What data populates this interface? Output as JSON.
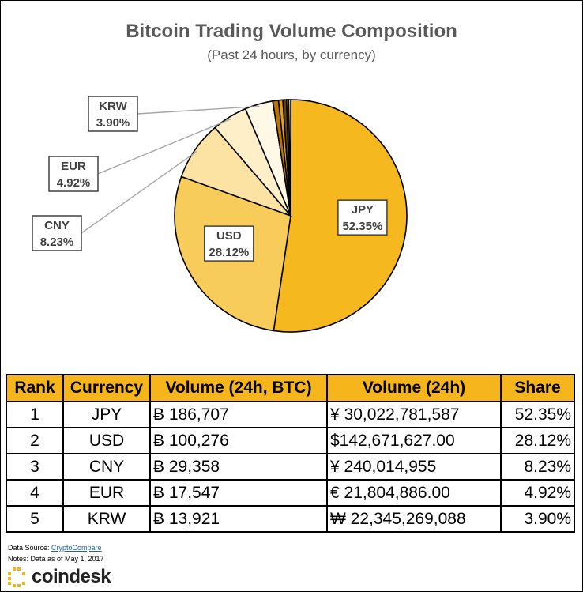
{
  "chart_data": {
    "type": "pie",
    "title": "Bitcoin Trading Volume Composition",
    "subtitle": "(Past 24 hours, by currency)",
    "slices": [
      {
        "label": "JPY",
        "value": 52.35,
        "pct_label": "52.35%",
        "color": "#f6b81f"
      },
      {
        "label": "USD",
        "value": 28.12,
        "pct_label": "28.12%",
        "color": "#f8cc5a"
      },
      {
        "label": "CNY",
        "value": 8.23,
        "pct_label": "8.23%",
        "color": "#fce3a4"
      },
      {
        "label": "EUR",
        "value": 4.92,
        "pct_label": "4.92%",
        "color": "#feefc9"
      },
      {
        "label": "KRW",
        "value": 3.9,
        "pct_label": "3.90%",
        "color": "#fff8e6"
      },
      {
        "label": "",
        "value": 0.8,
        "pct_label": "",
        "color": "#b87400"
      },
      {
        "label": "",
        "value": 0.6,
        "pct_label": "",
        "color": "#e3a016"
      },
      {
        "label": "",
        "value": 0.5,
        "pct_label": "",
        "color": "#6b4300"
      },
      {
        "label": "",
        "value": 0.3,
        "pct_label": "",
        "color": "#c98a10"
      },
      {
        "label": "",
        "value": 0.28,
        "pct_label": "",
        "color": "#ffffff"
      }
    ]
  },
  "table": {
    "headers": [
      "Rank",
      "Currency",
      "Volume (24h, BTC)",
      "Volume (24h)",
      "Share"
    ],
    "rows": [
      [
        "1",
        "JPY",
        "Ƀ 186,707",
        "¥ 30,022,781,587",
        "52.35%"
      ],
      [
        "2",
        "USD",
        "Ƀ 100,276",
        "$142,671,627.00",
        "28.12%"
      ],
      [
        "3",
        "CNY",
        "Ƀ 29,358",
        "¥ 240,014,955",
        "8.23%"
      ],
      [
        "4",
        "EUR",
        "Ƀ 17,547",
        "€ 21,804,886.00",
        "4.92%"
      ],
      [
        "5",
        "KRW",
        "Ƀ 13,921",
        "₩ 22,345,269,088",
        "3.90%"
      ]
    ]
  },
  "footer": {
    "source_prefix": "Data Source: ",
    "source_link": "CryptoCompare",
    "notes": "Notes: Data as of May 1, 2017",
    "brand": "coindesk"
  },
  "colors": {
    "header_bg": "#f5b51b",
    "title_text": "#595959",
    "brand_yellow": "#f5b51b"
  }
}
